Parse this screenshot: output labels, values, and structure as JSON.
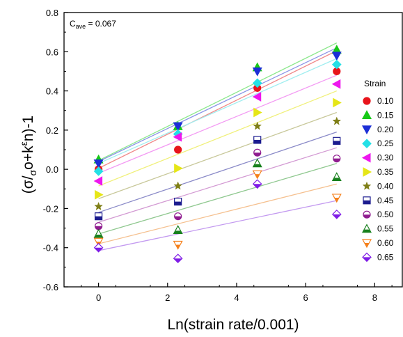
{
  "chart_data": {
    "type": "scatter",
    "annotation": "C ave = 0.067",
    "xlabel": "Ln(strain rate/0.001)",
    "ylabel": "(σ/σo+kεn)-1",
    "xlim": [
      -1,
      8.8
    ],
    "ylim": [
      -0.6,
      0.8
    ],
    "xticks": [
      "0",
      "2",
      "4",
      "6",
      "8"
    ],
    "yticks": [
      "-0.6",
      "-0.4",
      "-0.2",
      "0.0",
      "0.2",
      "0.4",
      "0.6",
      "0.8"
    ],
    "x": [
      0,
      2.3,
      4.6,
      6.9
    ],
    "legend_title": "Strain",
    "legend_position": "right",
    "grid": false,
    "series": [
      {
        "name": "0.10",
        "marker": "circle",
        "color": "#e8141b",
        "line_color": "#f08a8a",
        "values": [
          0.0,
          0.1,
          0.415,
          0.5
        ],
        "fit": [
          0.005,
          0.605
        ]
      },
      {
        "name": "0.15",
        "marker": "triangle",
        "color": "#17c917",
        "line_color": "#8de88d",
        "values": [
          0.05,
          0.22,
          0.52,
          0.61
        ],
        "fit": [
          0.045,
          0.645
        ]
      },
      {
        "name": "0.20",
        "marker": "tri-down",
        "color": "#1c2ed6",
        "line_color": "#8a94e6",
        "values": [
          0.03,
          0.22,
          0.5,
          0.58
        ],
        "fit": [
          0.04,
          0.62
        ]
      },
      {
        "name": "0.25",
        "marker": "diamond",
        "color": "#24e0e6",
        "line_color": "#a0eef0",
        "values": [
          -0.01,
          0.18,
          0.44,
          0.535
        ],
        "fit": [
          0.03,
          0.565
        ]
      },
      {
        "name": "0.30",
        "marker": "tri-left",
        "color": "#ee17ee",
        "line_color": "#f39bf3",
        "values": [
          -0.06,
          0.165,
          0.37,
          0.435
        ],
        "fit": [
          -0.02,
          0.48
        ]
      },
      {
        "name": "0.35",
        "marker": "tri-right",
        "color": "#e6e617",
        "line_color": "#f0f07a",
        "values": [
          -0.13,
          0.005,
          0.29,
          0.34
        ],
        "fit": [
          -0.085,
          0.4
        ]
      },
      {
        "name": "0.40",
        "marker": "star",
        "color": "#7f7f17",
        "line_color": "#c8c89a",
        "values": [
          -0.19,
          -0.085,
          0.22,
          0.245
        ],
        "fit": [
          -0.15,
          0.29
        ]
      },
      {
        "name": "0.45",
        "marker": "square-half",
        "color": "#1c1c8f",
        "line_color": "#8a8ac8",
        "values": [
          -0.24,
          -0.165,
          0.15,
          0.145
        ],
        "fit": [
          -0.22,
          0.19
        ]
      },
      {
        "name": "0.50",
        "marker": "circle-half",
        "color": "#8f1c8f",
        "line_color": "#d39ad3",
        "values": [
          -0.29,
          -0.24,
          0.085,
          0.055
        ],
        "fit": [
          -0.27,
          0.11
        ]
      },
      {
        "name": "0.55",
        "marker": "triangle-half",
        "color": "#17801c",
        "line_color": "#8fc88f",
        "values": [
          -0.33,
          -0.31,
          0.03,
          -0.04
        ],
        "fit": [
          -0.33,
          0.03
        ]
      },
      {
        "name": "0.60",
        "marker": "tri-down-half",
        "color": "#f5801c",
        "line_color": "#f5c08f",
        "values": [
          -0.37,
          -0.385,
          -0.025,
          -0.145
        ],
        "fit": [
          -0.38,
          -0.075
        ]
      },
      {
        "name": "0.65",
        "marker": "diamond-half",
        "color": "#7f1ce6",
        "line_color": "#c39af0",
        "values": [
          -0.4,
          -0.455,
          -0.075,
          -0.23
        ],
        "fit": [
          -0.415,
          -0.16
        ]
      }
    ]
  }
}
